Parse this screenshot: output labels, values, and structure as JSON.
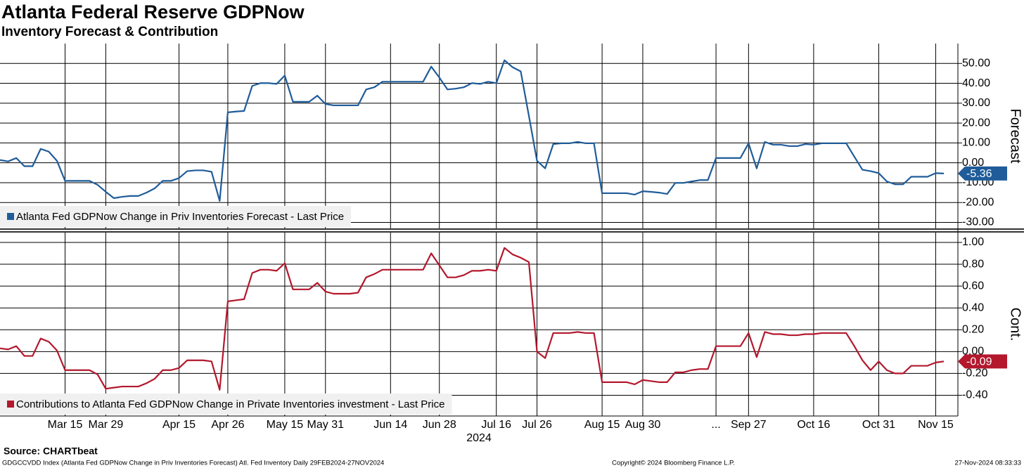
{
  "header": {
    "title": "Atlanta Federal Reserve GDPNow",
    "subtitle": "Inventory Forecast & Contribution"
  },
  "chart_data": [
    {
      "type": "line",
      "ylabel": "Forecast",
      "grid": true,
      "legend": "lower left",
      "ylim": [
        -33,
        60
      ],
      "yticks": [
        {
          "value": 50,
          "label": "50.00"
        },
        {
          "value": 40,
          "label": "40.00"
        },
        {
          "value": 30,
          "label": "30.00"
        },
        {
          "value": 20,
          "label": "20.00"
        },
        {
          "value": 10,
          "label": "10.00"
        },
        {
          "value": 0,
          "label": "0.00"
        },
        {
          "value": -10,
          "label": "-10.00"
        },
        {
          "value": -20,
          "label": "-20.00"
        },
        {
          "value": -30,
          "label": "-30.00"
        }
      ],
      "series": [
        {
          "name": "Atlanta Fed GDPNow Change in Priv Inventories Forecast - Last Price",
          "color": "#1f5c99",
          "values": [
            1.4,
            0.7,
            2.4,
            -1.7,
            -1.7,
            7.0,
            5.6,
            1.0,
            -9.1,
            -9.1,
            -9.1,
            -9.1,
            -11.1,
            -14.6,
            -17.8,
            -17.1,
            -16.7,
            -16.7,
            -15.0,
            -12.9,
            -9.1,
            -9.1,
            -7.7,
            -4.2,
            -3.8,
            -3.8,
            -4.5,
            -19.2,
            25.4,
            25.8,
            26.1,
            38.7,
            40.1,
            40.1,
            39.7,
            43.9,
            30.7,
            30.7,
            30.7,
            33.8,
            29.6,
            28.9,
            28.9,
            28.9,
            28.9,
            36.9,
            38.0,
            40.8,
            40.8,
            40.8,
            40.8,
            40.8,
            40.8,
            48.4,
            42.9,
            36.9,
            37.3,
            38.0,
            40.1,
            39.7,
            40.8,
            40.1,
            51.6,
            48.1,
            46.0,
            23.7,
            1.0,
            -2.8,
            9.4,
            9.8,
            9.8,
            10.5,
            9.8,
            9.8,
            -15.3,
            -15.3,
            -15.3,
            -15.3,
            -16.0,
            -14.3,
            -14.6,
            -15.0,
            -15.7,
            -10.1,
            -10.1,
            -9.4,
            -8.7,
            -8.7,
            2.4,
            2.4,
            2.4,
            2.4,
            9.8,
            -2.8,
            10.5,
            9.1,
            9.1,
            8.4,
            8.4,
            9.4,
            9.1,
            9.8,
            9.8,
            9.8,
            9.8,
            3.1,
            -3.5,
            -4.2,
            -5.2,
            -9.4,
            -10.8,
            -10.8,
            -7.0,
            -7.0,
            -7.0,
            -5.2,
            -5.36
          ]
        }
      ]
    },
    {
      "type": "line",
      "ylabel": "Cont.",
      "grid": true,
      "legend": "lower left",
      "ylim": [
        -0.59,
        1.09
      ],
      "yticks": [
        {
          "value": 1,
          "label": "1.00"
        },
        {
          "value": 0.8,
          "label": "0.80"
        },
        {
          "value": 0.6,
          "label": "0.60"
        },
        {
          "value": 0.4,
          "label": "0.40"
        },
        {
          "value": 0.2,
          "label": "0.20"
        },
        {
          "value": 0,
          "label": "0.00"
        },
        {
          "value": -0.2,
          "label": "-0.20"
        },
        {
          "value": -0.4,
          "label": "-0.40"
        }
      ],
      "x_group_label": "2024",
      "categories": [
        null,
        null,
        null,
        null,
        null,
        null,
        null,
        null,
        "Mar 15",
        null,
        null,
        null,
        null,
        "Mar 29",
        null,
        null,
        null,
        null,
        null,
        null,
        null,
        null,
        "Apr 15",
        null,
        null,
        null,
        null,
        null,
        "Apr 26",
        null,
        null,
        null,
        null,
        null,
        null,
        "May 15",
        null,
        null,
        null,
        null,
        "May 31",
        null,
        null,
        null,
        null,
        null,
        null,
        null,
        "Jun 14",
        null,
        null,
        null,
        null,
        null,
        "Jun 28",
        null,
        null,
        null,
        null,
        null,
        null,
        "Jul 16",
        null,
        null,
        null,
        null,
        "Jul 26",
        null,
        null,
        null,
        null,
        null,
        null,
        null,
        "Aug 15",
        null,
        null,
        null,
        null,
        "Aug 30",
        null,
        null,
        null,
        null,
        null,
        null,
        null,
        null,
        "...",
        null,
        null,
        null,
        "Sep 27",
        null,
        null,
        null,
        null,
        null,
        null,
        null,
        "Oct 16",
        null,
        null,
        null,
        null,
        null,
        null,
        null,
        "Oct 31",
        null,
        null,
        null,
        null,
        null,
        null,
        "Nov 15",
        null
      ],
      "series": [
        {
          "name": "Contributions to Atlanta Fed GDPNow Change in Private Inventories investment - Last Price",
          "color": "#b3182d",
          "values": [
            0.03,
            0.02,
            0.05,
            -0.04,
            -0.04,
            0.12,
            0.09,
            0.01,
            -0.17,
            -0.17,
            -0.17,
            -0.17,
            -0.21,
            -0.34,
            -0.33,
            -0.32,
            -0.32,
            -0.32,
            -0.29,
            -0.25,
            -0.17,
            -0.17,
            -0.15,
            -0.08,
            -0.08,
            -0.08,
            -0.09,
            -0.35,
            0.46,
            0.47,
            0.48,
            0.72,
            0.75,
            0.75,
            0.74,
            0.81,
            0.57,
            0.57,
            0.57,
            0.63,
            0.55,
            0.53,
            0.53,
            0.53,
            0.54,
            0.68,
            0.71,
            0.75,
            0.75,
            0.75,
            0.75,
            0.75,
            0.75,
            0.9,
            0.79,
            0.68,
            0.68,
            0.7,
            0.74,
            0.74,
            0.75,
            0.74,
            0.95,
            0.89,
            0.86,
            0.82,
            0,
            -0.06,
            0.17,
            0.17,
            0.17,
            0.18,
            0.17,
            0.17,
            -0.28,
            -0.28,
            -0.28,
            -0.28,
            -0.3,
            -0.26,
            -0.27,
            -0.28,
            -0.28,
            -0.19,
            -0.19,
            -0.17,
            -0.16,
            -0.16,
            0.05,
            0.05,
            0.05,
            0.05,
            0.17,
            -0.05,
            0.18,
            0.16,
            0.16,
            0.15,
            0.15,
            0.16,
            0.16,
            0.17,
            0.17,
            0.17,
            0.17,
            0.05,
            -0.08,
            -0.17,
            -0.09,
            -0.17,
            -0.2,
            -0.2,
            -0.13,
            -0.13,
            -0.13,
            -0.1,
            -0.09
          ]
        }
      ]
    }
  ],
  "footer": {
    "source": "Source: CHARTbeat",
    "ticker": "GDGCCVDD Index (Atlanta Fed GDPNow Change in Priv Inventories Forecast) Atl. Fed Inventory  Daily 29FEB2024-27NOV2024",
    "copyright": "Copyright© 2024 Bloomberg Finance L.P.",
    "timestamp": "27-Nov-2024 08:33:33"
  }
}
